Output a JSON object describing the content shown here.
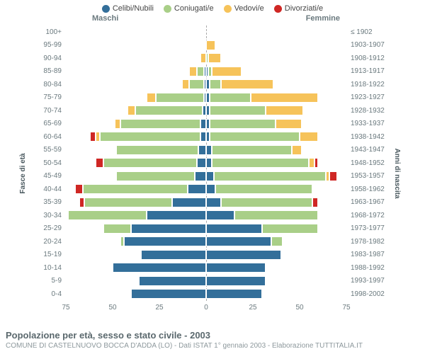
{
  "legend": [
    {
      "label": "Celibi/Nubili",
      "color": "#336f9a"
    },
    {
      "label": "Coniugati/e",
      "color": "#a9cf88"
    },
    {
      "label": "Vedovi/e",
      "color": "#f6c35a"
    },
    {
      "label": "Divorziati/e",
      "color": "#cf2724"
    }
  ],
  "header": {
    "male": "Maschi",
    "female": "Femmine"
  },
  "axis_labels": {
    "left": "Fasce di età",
    "right": "Anni di nascita"
  },
  "xmax": 75,
  "xticks": [
    75,
    50,
    25,
    0,
    25,
    50,
    75
  ],
  "colors": {
    "celibi": "#336f9a",
    "coniugati": "#a9cf88",
    "vedovi": "#f6c35a",
    "divorziati": "#cf2724",
    "text": "#6a797e",
    "grid": "#aaaaaa"
  },
  "footer": {
    "title": "Popolazione per età, sesso e stato civile - 2003",
    "sub": "COMUNE DI CASTELNUOVO BOCCA D'ADDA (LO) - Dati ISTAT 1° gennaio 2003 - Elaborazione TUTTITALIA.IT"
  },
  "rows": [
    {
      "age": "100+",
      "year": "≤ 1902",
      "m": {
        "c": 0,
        "g": 0,
        "v": 0,
        "d": 0
      },
      "f": {
        "c": 0,
        "g": 0,
        "v": 0,
        "d": 0
      }
    },
    {
      "age": "95-99",
      "year": "1903-1907",
      "m": {
        "c": 0,
        "g": 0,
        "v": 0,
        "d": 0
      },
      "f": {
        "c": 0,
        "g": 0,
        "v": 5,
        "d": 0
      }
    },
    {
      "age": "90-94",
      "year": "1908-1912",
      "m": {
        "c": 0,
        "g": 0,
        "v": 3,
        "d": 0
      },
      "f": {
        "c": 0,
        "g": 1,
        "v": 7,
        "d": 0
      }
    },
    {
      "age": "85-89",
      "year": "1913-1917",
      "m": {
        "c": 1,
        "g": 4,
        "v": 4,
        "d": 0
      },
      "f": {
        "c": 1,
        "g": 2,
        "v": 16,
        "d": 0
      }
    },
    {
      "age": "80-84",
      "year": "1918-1922",
      "m": {
        "c": 1,
        "g": 8,
        "v": 4,
        "d": 0
      },
      "f": {
        "c": 2,
        "g": 6,
        "v": 28,
        "d": 0
      }
    },
    {
      "age": "75-79",
      "year": "1923-1927",
      "m": {
        "c": 1,
        "g": 26,
        "v": 5,
        "d": 0
      },
      "f": {
        "c": 2,
        "g": 22,
        "v": 36,
        "d": 0
      }
    },
    {
      "age": "70-74",
      "year": "1928-1932",
      "m": {
        "c": 2,
        "g": 36,
        "v": 4,
        "d": 0
      },
      "f": {
        "c": 2,
        "g": 30,
        "v": 20,
        "d": 0
      }
    },
    {
      "age": "65-69",
      "year": "1933-1937",
      "m": {
        "c": 3,
        "g": 43,
        "v": 3,
        "d": 0
      },
      "f": {
        "c": 2,
        "g": 35,
        "v": 14,
        "d": 0
      }
    },
    {
      "age": "60-64",
      "year": "1938-1942",
      "m": {
        "c": 3,
        "g": 54,
        "v": 2,
        "d": 3
      },
      "f": {
        "c": 2,
        "g": 48,
        "v": 10,
        "d": 0
      }
    },
    {
      "age": "55-59",
      "year": "1943-1947",
      "m": {
        "c": 4,
        "g": 44,
        "v": 1,
        "d": 0
      },
      "f": {
        "c": 3,
        "g": 43,
        "v": 5,
        "d": 0
      }
    },
    {
      "age": "50-54",
      "year": "1948-1952",
      "m": {
        "c": 5,
        "g": 50,
        "v": 0,
        "d": 4
      },
      "f": {
        "c": 3,
        "g": 52,
        "v": 3,
        "d": 2
      }
    },
    {
      "age": "45-49",
      "year": "1953-1957",
      "m": {
        "c": 6,
        "g": 42,
        "v": 0,
        "d": 0
      },
      "f": {
        "c": 4,
        "g": 60,
        "v": 2,
        "d": 4
      }
    },
    {
      "age": "40-44",
      "year": "1958-1962",
      "m": {
        "c": 10,
        "g": 56,
        "v": 0,
        "d": 4
      },
      "f": {
        "c": 5,
        "g": 52,
        "v": 0,
        "d": 0
      }
    },
    {
      "age": "35-39",
      "year": "1963-1967",
      "m": {
        "c": 18,
        "g": 47,
        "v": 0,
        "d": 3
      },
      "f": {
        "c": 8,
        "g": 49,
        "v": 0,
        "d": 3
      }
    },
    {
      "age": "30-34",
      "year": "1968-1972",
      "m": {
        "c": 32,
        "g": 42,
        "v": 0,
        "d": 0
      },
      "f": {
        "c": 15,
        "g": 45,
        "v": 0,
        "d": 0
      }
    },
    {
      "age": "25-29",
      "year": "1973-1977",
      "m": {
        "c": 40,
        "g": 15,
        "v": 0,
        "d": 0
      },
      "f": {
        "c": 30,
        "g": 30,
        "v": 0,
        "d": 0
      }
    },
    {
      "age": "20-24",
      "year": "1978-1982",
      "m": {
        "c": 44,
        "g": 2,
        "v": 0,
        "d": 0
      },
      "f": {
        "c": 35,
        "g": 6,
        "v": 0,
        "d": 0
      }
    },
    {
      "age": "15-19",
      "year": "1983-1987",
      "m": {
        "c": 35,
        "g": 0,
        "v": 0,
        "d": 0
      },
      "f": {
        "c": 40,
        "g": 0,
        "v": 0,
        "d": 0
      }
    },
    {
      "age": "10-14",
      "year": "1988-1992",
      "m": {
        "c": 50,
        "g": 0,
        "v": 0,
        "d": 0
      },
      "f": {
        "c": 32,
        "g": 0,
        "v": 0,
        "d": 0
      }
    },
    {
      "age": "5-9",
      "year": "1993-1997",
      "m": {
        "c": 36,
        "g": 0,
        "v": 0,
        "d": 0
      },
      "f": {
        "c": 32,
        "g": 0,
        "v": 0,
        "d": 0
      }
    },
    {
      "age": "0-4",
      "year": "1998-2002",
      "m": {
        "c": 40,
        "g": 0,
        "v": 0,
        "d": 0
      },
      "f": {
        "c": 30,
        "g": 0,
        "v": 0,
        "d": 0
      }
    }
  ]
}
